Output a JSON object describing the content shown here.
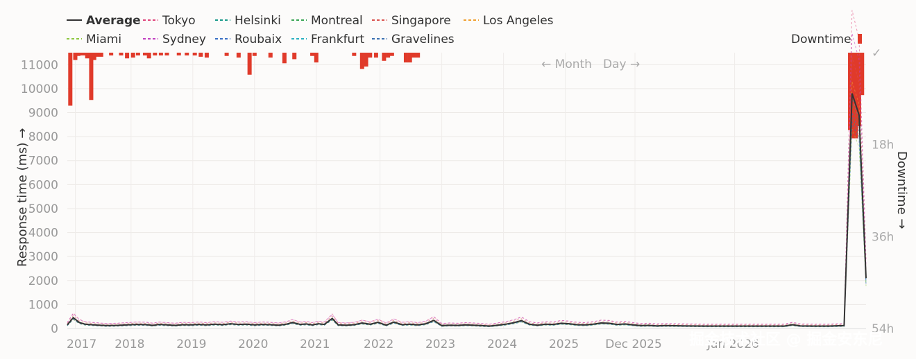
{
  "chart_data": {
    "type": "line",
    "legend": [
      {
        "name": "Average",
        "color": "#333333",
        "dash": "solid"
      },
      {
        "name": "Tokyo",
        "color": "#e0457b",
        "dash": "dashed"
      },
      {
        "name": "Helsinki",
        "color": "#1a9a8a",
        "dash": "dashed"
      },
      {
        "name": "Montreal",
        "color": "#3aa655",
        "dash": "dashed"
      },
      {
        "name": "Singapore",
        "color": "#d9534f",
        "dash": "dashed"
      },
      {
        "name": "Los Angeles",
        "color": "#f0a030",
        "dash": "dashed"
      },
      {
        "name": "Miami",
        "color": "#8cc63f",
        "dash": "dashed"
      },
      {
        "name": "Sydney",
        "color": "#c040c0",
        "dash": "dashed"
      },
      {
        "name": "Roubaix",
        "color": "#3a6fc4",
        "dash": "dashed"
      },
      {
        "name": "Frankfurt",
        "color": "#2ab0c0",
        "dash": "dashed"
      },
      {
        "name": "Gravelines",
        "color": "#3a6fb0",
        "dash": "dashed"
      }
    ],
    "downtime_legend": "Downtime",
    "ylabel": "Response time (ms) →",
    "y2label": "Downtime →",
    "ylim": [
      0,
      11500
    ],
    "y_ticks": [
      "0",
      "1000",
      "2000",
      "3000",
      "4000",
      "5000",
      "6000",
      "7000",
      "8000",
      "9000",
      "10000",
      "11000"
    ],
    "y2_ticks": [
      "✓",
      "18h",
      "36h",
      "54h"
    ],
    "x_ticks": [
      "2017",
      "2018",
      "2019",
      "2020",
      "2021",
      "2022",
      "2023",
      "2024",
      "2025",
      "Dec 2025",
      "Jan 2026"
    ],
    "nav": {
      "prev": "← Month",
      "next": "Day →"
    },
    "average_series": [
      [
        0,
        150
      ],
      [
        0.3,
        450
      ],
      [
        0.6,
        250
      ],
      [
        0.9,
        180
      ],
      [
        1.2,
        160
      ],
      [
        1.6,
        140
      ],
      [
        2.0,
        120
      ],
      [
        2.5,
        130
      ],
      [
        3.0,
        150
      ],
      [
        3.5,
        170
      ],
      [
        4.0,
        160
      ],
      [
        4.3,
        130
      ],
      [
        4.6,
        170
      ],
      [
        5.0,
        150
      ],
      [
        5.4,
        130
      ],
      [
        5.8,
        160
      ],
      [
        6.2,
        150
      ],
      [
        6.6,
        170
      ],
      [
        7.0,
        150
      ],
      [
        7.4,
        180
      ],
      [
        7.8,
        160
      ],
      [
        8.2,
        200
      ],
      [
        8.6,
        170
      ],
      [
        9.0,
        180
      ],
      [
        9.4,
        150
      ],
      [
        9.8,
        170
      ],
      [
        10.2,
        160
      ],
      [
        10.6,
        140
      ],
      [
        11.0,
        180
      ],
      [
        11.3,
        250
      ],
      [
        11.7,
        170
      ],
      [
        12.0,
        190
      ],
      [
        12.3,
        150
      ],
      [
        12.6,
        200
      ],
      [
        12.9,
        170
      ],
      [
        13.3,
        420
      ],
      [
        13.6,
        150
      ],
      [
        14.0,
        140
      ],
      [
        14.4,
        160
      ],
      [
        14.8,
        230
      ],
      [
        15.2,
        180
      ],
      [
        15.6,
        260
      ],
      [
        16.0,
        140
      ],
      [
        16.4,
        270
      ],
      [
        16.8,
        160
      ],
      [
        17.2,
        180
      ],
      [
        17.6,
        150
      ],
      [
        18.0,
        200
      ],
      [
        18.4,
        340
      ],
      [
        18.8,
        120
      ],
      [
        19.2,
        140
      ],
      [
        19.6,
        130
      ],
      [
        20.0,
        150
      ],
      [
        20.4,
        140
      ],
      [
        20.8,
        120
      ],
      [
        21.2,
        100
      ],
      [
        21.6,
        140
      ],
      [
        22.0,
        180
      ],
      [
        22.4,
        240
      ],
      [
        22.8,
        330
      ],
      [
        23.2,
        180
      ],
      [
        23.6,
        140
      ],
      [
        24.0,
        180
      ],
      [
        24.4,
        170
      ],
      [
        24.8,
        220
      ],
      [
        25.2,
        200
      ],
      [
        25.6,
        160
      ],
      [
        26.0,
        150
      ],
      [
        26.4,
        180
      ],
      [
        26.8,
        230
      ],
      [
        27.2,
        220
      ],
      [
        27.6,
        170
      ],
      [
        28.0,
        190
      ],
      [
        28.4,
        150
      ],
      [
        28.8,
        120
      ],
      [
        29.2,
        130
      ],
      [
        29.6,
        110
      ],
      [
        30.0,
        120
      ],
      [
        31.0,
        110
      ],
      [
        32.0,
        100
      ],
      [
        33.0,
        100
      ],
      [
        34.0,
        100
      ],
      [
        35.0,
        100
      ],
      [
        36.0,
        100
      ],
      [
        36.4,
        160
      ],
      [
        36.8,
        110
      ],
      [
        37.5,
        100
      ],
      [
        38.2,
        100
      ],
      [
        39.0,
        120
      ],
      [
        39.4,
        9800
      ],
      [
        39.75,
        8900
      ],
      [
        40.1,
        2100
      ]
    ],
    "downtime_bars": [
      [
        0.15,
        6.5
      ],
      [
        0.4,
        0.9
      ],
      [
        0.55,
        0.4
      ],
      [
        0.7,
        0.25
      ],
      [
        0.85,
        0.2
      ],
      [
        1.0,
        0.7
      ],
      [
        1.2,
        5.8
      ],
      [
        1.35,
        0.9
      ],
      [
        1.5,
        0.5
      ],
      [
        1.7,
        0.5
      ],
      [
        2.2,
        0.2
      ],
      [
        2.7,
        0.2
      ],
      [
        3.0,
        0.7
      ],
      [
        3.3,
        0.6
      ],
      [
        3.55,
        0.3
      ],
      [
        3.9,
        0.2
      ],
      [
        4.1,
        0.7
      ],
      [
        4.4,
        0.2
      ],
      [
        4.7,
        0.2
      ],
      [
        5.0,
        0.2
      ],
      [
        5.6,
        0.3
      ],
      [
        6.0,
        0.3
      ],
      [
        6.4,
        0.3
      ],
      [
        6.7,
        0.5
      ],
      [
        7.0,
        0.6
      ],
      [
        8.0,
        0.4
      ],
      [
        8.6,
        0.6
      ],
      [
        9.15,
        2.7
      ],
      [
        9.4,
        0.4
      ],
      [
        10.2,
        0.6
      ],
      [
        10.9,
        1.3
      ],
      [
        11.4,
        0.8
      ],
      [
        12.3,
        0.4
      ],
      [
        12.5,
        1.2
      ],
      [
        14.4,
        0.4
      ],
      [
        14.8,
        2.0
      ],
      [
        15.0,
        1.7
      ],
      [
        15.2,
        0.6
      ],
      [
        15.5,
        0.6
      ],
      [
        15.9,
        1.0
      ],
      [
        16.1,
        0.6
      ],
      [
        16.3,
        0.4
      ],
      [
        17.0,
        1.2
      ],
      [
        17.2,
        1.2
      ],
      [
        17.4,
        0.6
      ],
      [
        17.6,
        0.6
      ],
      [
        39.3,
        9.5
      ],
      [
        39.45,
        10.5
      ],
      [
        39.6,
        10.5
      ],
      [
        39.75,
        9.0
      ],
      [
        39.9,
        5.2
      ]
    ],
    "watermark": "掘金技术社区 @ 掘金安东尼"
  }
}
